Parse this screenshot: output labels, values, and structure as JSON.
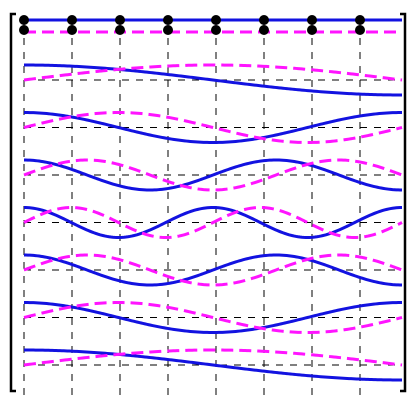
{
  "colors": {
    "solid_wave": "#1212e0",
    "dashed_wave": "#ff14ff",
    "grid": "#000000",
    "bracket": "#000000",
    "dot": "#000000",
    "background": "#ffffff"
  },
  "figure": {
    "top_row": {
      "dot_count": 8,
      "solid_line": "flat",
      "dashed_line": "flat"
    },
    "wave_rows": [
      {
        "row": 1,
        "cycles": 1
      },
      {
        "row": 2,
        "cycles": 2
      },
      {
        "row": 3,
        "cycles": 3
      },
      {
        "row": 4,
        "cycles": 4
      },
      {
        "row": 5,
        "cycles": 3
      },
      {
        "row": 6,
        "cycles": 2
      },
      {
        "row": 7,
        "cycles": 1
      }
    ],
    "vertical_grid_lines": 8,
    "solid_style": "solid",
    "dashed_style": "dashed"
  }
}
